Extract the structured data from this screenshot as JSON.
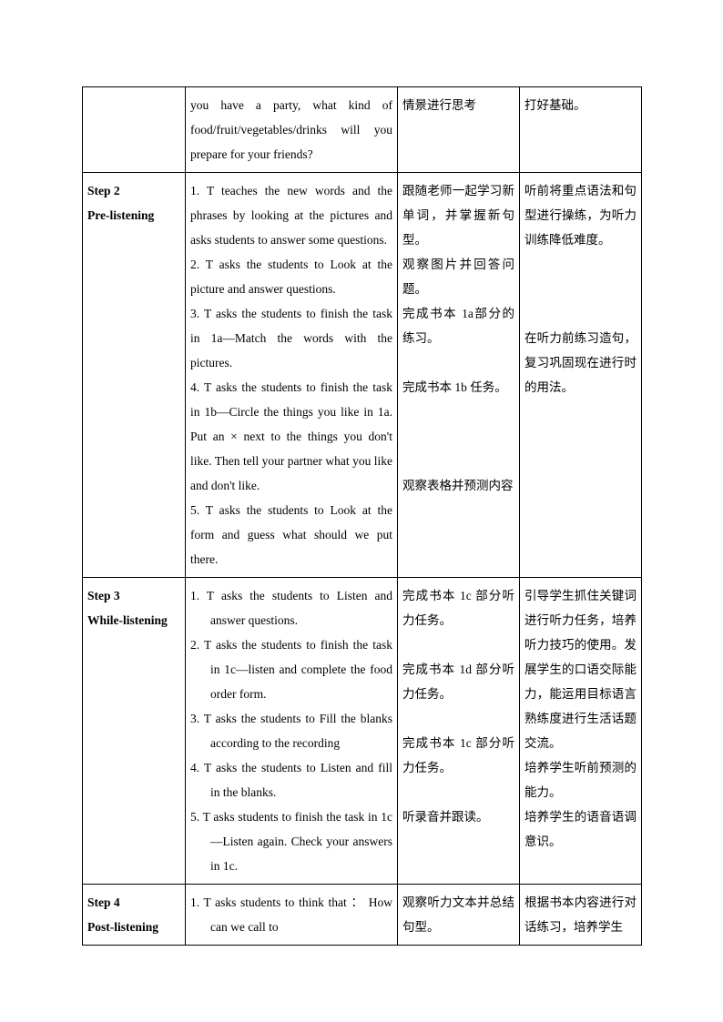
{
  "rows": [
    {
      "col1": "",
      "col2": "you have a party, what kind of food/fruit/vegetables/drinks will you prepare for your friends?",
      "col3": "情景进行思考",
      "col4": "打好基础。"
    },
    {
      "step": "Step 2",
      "title": "Pre-listening",
      "col2_items": [
        "1. T teaches the new words and the phrases by looking at the pictures and asks students to answer some questions.",
        "2. T asks the students to  Look at the picture and answer questions.",
        "3. T asks the students to finish the task in 1a—Match the words with the pictures.",
        "4. T asks the students to finish the task in 1b—Circle the things you like in 1a. Put an × next to the things you don't like. Then tell your partner what you like and don't like.",
        "5. T asks the students to Look at the form and guess what should we put there."
      ],
      "col3_parts": [
        "跟随老师一起学习新单词，并掌握新句型。",
        "观察图片并回答问题。",
        "完成书本 1a部分的练习。",
        "",
        "完成书本 1b 任务。",
        "",
        "",
        "",
        "观察表格并预测内容"
      ],
      "col4_parts": [
        "听前将重点语法和句型进行操练，为听力训练降低难度。",
        "",
        "",
        "",
        "在听力前练习造句，复习巩固现在进行时的用法。"
      ]
    },
    {
      "step": "Step 3",
      "title": "While-listening",
      "col2_items_ind": [
        "1.  T asks the students to Listen and answer questions.",
        "2.  T asks the students to finish the task in 1c—listen and complete the food order form.",
        "3.  T asks the students to Fill the blanks according to the recording",
        "4.  T asks the students to Listen and fill in the blanks.",
        "5.  T asks students to finish the task in 1c—Listen again. Check your answers in 1c."
      ],
      "col3_parts": [
        "完成书本 1c 部分听力任务。",
        "",
        "完成书本 1d 部分听力任务。",
        "",
        "完成书本 1c 部分听力任务。",
        "",
        "听录音并跟读。"
      ],
      "col4_parts": [
        "引导学生抓住关键词进行听力任务，培养听力技巧的使用。发展学生的口语交际能力，能运用目标语言熟练度进行生活话题交流。",
        "培养学生听前预测的能力。",
        "培养学生的语音语调意识。"
      ]
    },
    {
      "step": "Step 4",
      "title": "Post-listening",
      "col2_items_ind": [
        "1.  T asks students to think that ： How can we call to"
      ],
      "col3": "观察听力文本并总结句型。",
      "col4": "根据书本内容进行对话练习，培养学生"
    }
  ]
}
